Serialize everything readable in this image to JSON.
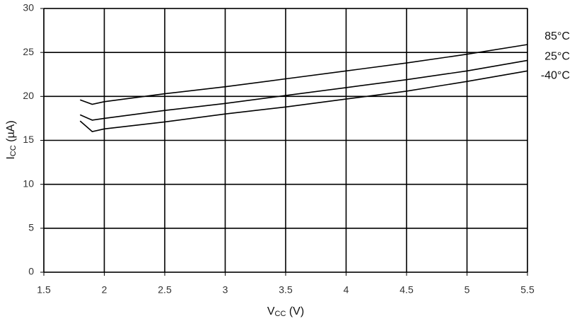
{
  "chart_data": {
    "type": "line",
    "x_label": {
      "main": "V",
      "sub": "CC",
      "unit": "(V)"
    },
    "y_label": {
      "main": "I",
      "sub": "CC",
      "unit": "(µA)"
    },
    "x": [
      1.8,
      1.9,
      2.0,
      2.5,
      3.0,
      3.5,
      4.0,
      4.5,
      5.0,
      5.5
    ],
    "series": [
      {
        "name": "85°C",
        "color": "#000000",
        "values": [
          19.6,
          19.1,
          19.4,
          20.3,
          21.1,
          22.0,
          22.9,
          23.8,
          24.8,
          25.9
        ]
      },
      {
        "name": "25°C",
        "color": "#000000",
        "values": [
          17.9,
          17.3,
          17.5,
          18.4,
          19.2,
          20.1,
          21.0,
          21.9,
          22.9,
          24.1
        ]
      },
      {
        "name": "-40°C",
        "color": "#000000",
        "values": [
          17.2,
          16.0,
          16.3,
          17.1,
          18.0,
          18.8,
          19.7,
          20.6,
          21.7,
          22.9
        ]
      }
    ],
    "xlim": [
      1.5,
      5.5
    ],
    "xticks": [
      1.5,
      2,
      2.5,
      3,
      3.5,
      4,
      4.5,
      5,
      5.5
    ],
    "ylim": [
      0,
      30
    ],
    "yticks": [
      0,
      5,
      10,
      15,
      20,
      25,
      30
    ],
    "grid": true
  }
}
